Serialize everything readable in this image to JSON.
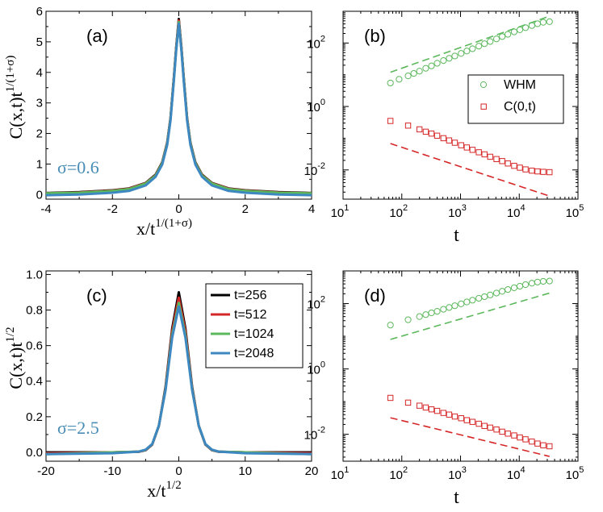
{
  "chart_data": [
    {
      "id": "a",
      "type": "line",
      "panel_label": "(a)",
      "annotation": "σ=0.6",
      "annotation_color": "#4a8db6",
      "xlabel": "x/t",
      "xlabel_sup": "1/(1+σ)",
      "ylabel": "C(x,t)t",
      "ylabel_sup": "1/(1+σ)",
      "xlim": [
        -4,
        4
      ],
      "ylim": [
        -0.15,
        6
      ],
      "xticks": [
        -4,
        -2,
        0,
        2,
        4
      ],
      "yticks": [
        0,
        1,
        2,
        3,
        4,
        5,
        6
      ],
      "series": [
        {
          "label": "t=256",
          "color": "#000000",
          "x": [
            -4,
            -3,
            -2,
            -1.5,
            -1,
            -0.7,
            -0.5,
            -0.35,
            -0.25,
            -0.15,
            -0.08,
            0,
            0.08,
            0.15,
            0.25,
            0.35,
            0.5,
            0.7,
            1,
            1.5,
            2,
            3,
            4
          ],
          "y": [
            0.05,
            0.08,
            0.14,
            0.2,
            0.38,
            0.65,
            1.05,
            1.7,
            2.5,
            3.8,
            4.8,
            5.75,
            4.8,
            3.8,
            2.5,
            1.7,
            1.05,
            0.65,
            0.38,
            0.2,
            0.14,
            0.08,
            0.05
          ]
        },
        {
          "label": "t=512",
          "color": "#d62728",
          "x": [
            -4,
            -3,
            -2,
            -1.5,
            -1,
            -0.7,
            -0.5,
            -0.35,
            -0.25,
            -0.15,
            -0.08,
            0,
            0.08,
            0.15,
            0.25,
            0.35,
            0.5,
            0.7,
            1,
            1.5,
            2,
            3,
            4
          ],
          "y": [
            0.04,
            0.07,
            0.13,
            0.19,
            0.37,
            0.63,
            1.03,
            1.68,
            2.48,
            3.77,
            4.77,
            5.7,
            4.77,
            3.77,
            2.48,
            1.68,
            1.03,
            0.63,
            0.37,
            0.19,
            0.13,
            0.07,
            0.04
          ]
        },
        {
          "label": "t=1024",
          "color": "#5cb85c",
          "x": [
            -4,
            -3,
            -2,
            -1.5,
            -1,
            -0.7,
            -0.5,
            -0.35,
            -0.25,
            -0.15,
            -0.08,
            0,
            0.08,
            0.15,
            0.25,
            0.35,
            0.5,
            0.7,
            1,
            1.5,
            2,
            3,
            4
          ],
          "y": [
            0.04,
            0.06,
            0.12,
            0.18,
            0.36,
            0.62,
            1.02,
            1.66,
            2.46,
            3.74,
            4.74,
            5.65,
            4.74,
            3.74,
            2.46,
            1.66,
            1.02,
            0.62,
            0.36,
            0.18,
            0.12,
            0.06,
            0.04
          ]
        },
        {
          "label": "t=2048",
          "color": "#3d88c1",
          "x": [
            -4,
            -3,
            -2,
            -1.5,
            -1,
            -0.7,
            -0.5,
            -0.35,
            -0.25,
            -0.15,
            -0.08,
            0,
            0.08,
            0.15,
            0.25,
            0.35,
            0.5,
            0.7,
            1,
            1.5,
            2,
            3,
            4
          ],
          "y": [
            -0.02,
            0.0,
            0.06,
            0.12,
            0.3,
            0.58,
            0.98,
            1.62,
            2.42,
            3.7,
            4.7,
            5.6,
            4.7,
            3.7,
            2.42,
            1.62,
            0.98,
            0.58,
            0.3,
            0.12,
            0.06,
            0.0,
            -0.02
          ]
        }
      ]
    },
    {
      "id": "b",
      "type": "scatter",
      "log": true,
      "panel_label": "(b)",
      "xlabel": "t",
      "xlim": [
        10,
        100000
      ],
      "ylim": [
        0.0012,
        1000
      ],
      "xtick_exps": [
        1,
        2,
        3,
        4,
        5
      ],
      "ytick_exps": [
        -2,
        0,
        2
      ],
      "legend_position": "right",
      "series": [
        {
          "label": "WHM",
          "color": "#5cb85c",
          "marker": "circle",
          "x": [
            64,
            90,
            128,
            160,
            200,
            256,
            320,
            400,
            512,
            640,
            800,
            1024,
            1280,
            1600,
            2048,
            2560,
            3200,
            4096,
            5120,
            6400,
            8192,
            10240,
            12800,
            16384,
            20480,
            25600,
            32768
          ],
          "y": [
            5.5,
            7.2,
            9.2,
            11,
            13,
            16,
            19,
            23,
            28,
            33,
            39,
            47,
            56,
            66,
            80,
            95,
            112,
            135,
            160,
            188,
            225,
            262,
            305,
            355,
            405,
            450,
            470
          ]
        },
        {
          "label": "C(0,t)",
          "color": "#d62728",
          "marker": "square",
          "x": [
            64,
            128,
            200,
            256,
            320,
            400,
            512,
            640,
            800,
            1024,
            1280,
            1600,
            2048,
            2560,
            3200,
            4096,
            5120,
            6400,
            8192,
            10240,
            12800,
            16384,
            20480,
            25600,
            32768
          ],
          "y": [
            0.35,
            0.25,
            0.19,
            0.16,
            0.14,
            0.12,
            0.1,
            0.085,
            0.072,
            0.06,
            0.051,
            0.043,
            0.036,
            0.031,
            0.026,
            0.022,
            0.019,
            0.016,
            0.0135,
            0.0118,
            0.0104,
            0.0095,
            0.009,
            0.0087,
            0.0085
          ]
        }
      ],
      "guides": [
        {
          "color": "#5cb85c",
          "x": [
            64,
            32768
          ],
          "y": [
            12,
            700
          ]
        },
        {
          "color": "#d62728",
          "x": [
            64,
            32768
          ],
          "y": [
            0.068,
            0.0015
          ]
        }
      ]
    },
    {
      "id": "c",
      "type": "line",
      "panel_label": "(c)",
      "annotation": "σ=2.5",
      "annotation_color": "#4a8db6",
      "xlabel": "x/t",
      "xlabel_sup": "1/2",
      "ylabel": "C(x,t)t",
      "ylabel_sup": "1/2",
      "xlim": [
        -20,
        20
      ],
      "ylim": [
        -0.05,
        1.02
      ],
      "xticks": [
        -20,
        -10,
        0,
        10,
        20
      ],
      "yticks": [
        0.0,
        0.2,
        0.4,
        0.6,
        0.8,
        1.0
      ],
      "legend_position": "top-right",
      "series": [
        {
          "label": "t=256",
          "color": "#000000",
          "x": [
            -20,
            -10,
            -6,
            -5,
            -4,
            -3,
            -2,
            -1,
            0,
            1,
            2,
            3,
            4,
            5,
            6,
            10,
            20
          ],
          "y": [
            0,
            0,
            0.003,
            0.012,
            0.044,
            0.148,
            0.368,
            0.696,
            0.9,
            0.696,
            0.368,
            0.148,
            0.044,
            0.012,
            0.003,
            0,
            0
          ]
        },
        {
          "label": "t=512",
          "color": "#d62728",
          "x": [
            -20,
            -10,
            -6,
            -5,
            -4,
            -3,
            -2,
            -1,
            0,
            1,
            2,
            3,
            4,
            5,
            6,
            10,
            20
          ],
          "y": [
            -0.005,
            0,
            0.003,
            0.013,
            0.045,
            0.15,
            0.36,
            0.68,
            0.87,
            0.68,
            0.36,
            0.15,
            0.045,
            0.013,
            0.003,
            0,
            -0.005
          ]
        },
        {
          "label": "t=1024",
          "color": "#5cb85c",
          "x": [
            -20,
            -10,
            -6,
            -5,
            -4,
            -3,
            -2,
            -1,
            0,
            1,
            2,
            3,
            4,
            5,
            6,
            10,
            20
          ],
          "y": [
            -0.01,
            0,
            0.004,
            0.014,
            0.046,
            0.15,
            0.355,
            0.66,
            0.84,
            0.66,
            0.355,
            0.15,
            0.046,
            0.014,
            0.004,
            0,
            -0.01
          ]
        },
        {
          "label": "t=2048",
          "color": "#3d88c1",
          "x": [
            -20,
            -10,
            -6,
            -5,
            -4,
            -3,
            -2,
            -1,
            0,
            1,
            2,
            3,
            4,
            5,
            6,
            10,
            20
          ],
          "y": [
            -0.01,
            -0.005,
            0.004,
            0.015,
            0.047,
            0.15,
            0.35,
            0.645,
            0.82,
            0.645,
            0.35,
            0.15,
            0.047,
            0.015,
            0.004,
            -0.005,
            -0.01
          ]
        }
      ]
    },
    {
      "id": "d",
      "type": "scatter",
      "log": true,
      "panel_label": "(d)",
      "xlabel": "t",
      "xlim": [
        10,
        100000
      ],
      "ylim": [
        0.0015,
        1000
      ],
      "xtick_exps": [
        1,
        2,
        3,
        4,
        5
      ],
      "ytick_exps": [
        -2,
        0,
        2
      ],
      "series": [
        {
          "label": "WHM",
          "color": "#5cb85c",
          "marker": "circle",
          "x": [
            64,
            128,
            200,
            256,
            320,
            400,
            512,
            640,
            800,
            1024,
            1280,
            1600,
            2048,
            2560,
            3200,
            4096,
            5120,
            6400,
            8192,
            10240,
            12800,
            16384,
            20480,
            25600,
            32768
          ],
          "y": [
            22,
            32,
            40,
            46,
            52,
            58,
            67,
            76,
            86,
            98,
            112,
            127,
            145,
            163,
            184,
            210,
            238,
            270,
            305,
            340,
            380,
            420,
            455,
            480,
            490
          ]
        },
        {
          "label": "C(0,t)",
          "color": "#d62728",
          "marker": "square",
          "x": [
            64,
            128,
            200,
            256,
            320,
            400,
            512,
            640,
            800,
            1024,
            1280,
            1600,
            2048,
            2560,
            3200,
            4096,
            5120,
            6400,
            8192,
            10240,
            12800,
            16384,
            20480,
            25600,
            32768
          ],
          "y": [
            0.13,
            0.093,
            0.075,
            0.066,
            0.058,
            0.052,
            0.045,
            0.04,
            0.035,
            0.031,
            0.027,
            0.024,
            0.021,
            0.018,
            0.016,
            0.014,
            0.012,
            0.0105,
            0.0092,
            0.008,
            0.007,
            0.006,
            0.0052,
            0.0046,
            0.0043
          ]
        }
      ],
      "guides": [
        {
          "color": "#5cb85c",
          "x": [
            64,
            32768
          ],
          "y": [
            8,
            210
          ]
        },
        {
          "color": "#d62728",
          "x": [
            64,
            32768
          ],
          "y": [
            0.032,
            0.0021
          ]
        }
      ]
    }
  ],
  "legend_c": {
    "entries": [
      {
        "label": "t=256",
        "color": "#000000"
      },
      {
        "label": "t=512",
        "color": "#d62728"
      },
      {
        "label": "t=1024",
        "color": "#5cb85c"
      },
      {
        "label": "t=2048",
        "color": "#3d88c1"
      }
    ]
  },
  "legend_b": {
    "entries": [
      {
        "label": "WHM",
        "color": "#5cb85c",
        "marker": "circle"
      },
      {
        "label": "C(0,t)",
        "color": "#d62728",
        "marker": "square"
      }
    ]
  }
}
